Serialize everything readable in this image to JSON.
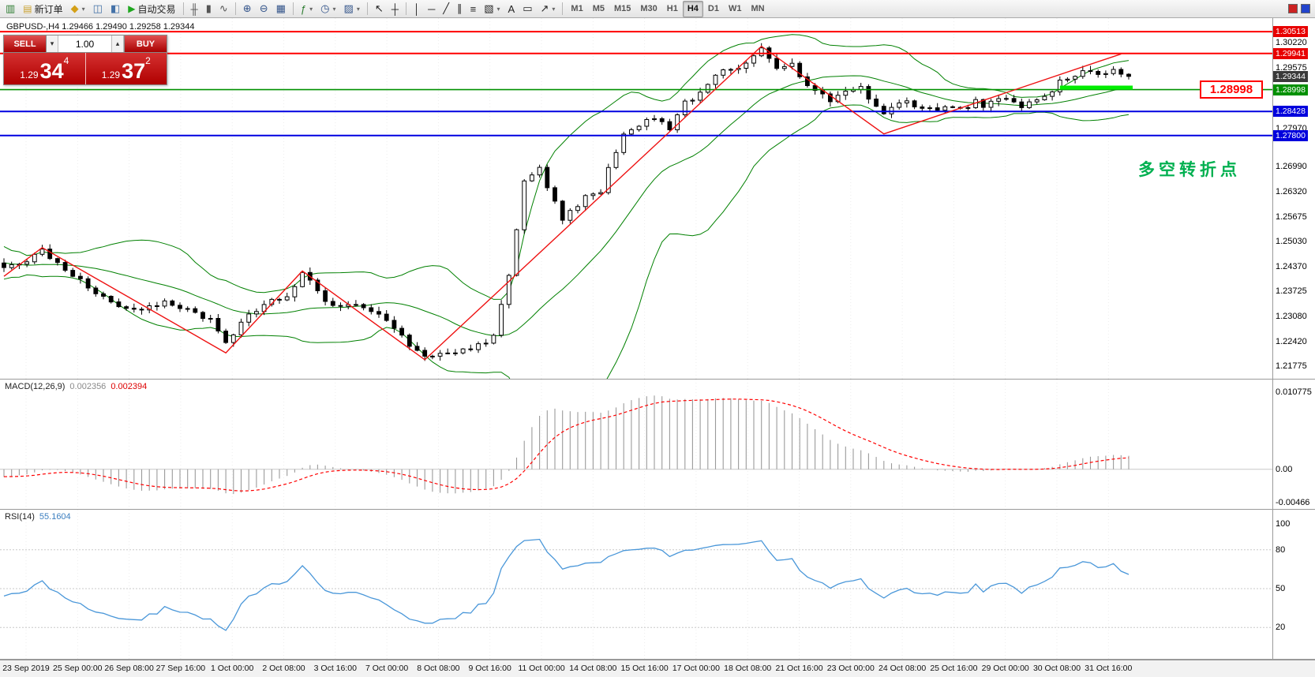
{
  "toolbar": {
    "active_timeframe": "H4",
    "items": [
      {
        "t": "icon",
        "name": "program-icon",
        "g": "▥",
        "c": "#2e7d32"
      },
      {
        "t": "labeled",
        "name": "new-order-button",
        "icon_name": "new-order-icon",
        "g": "▤",
        "gc": "#caa12d",
        "label": "新订单"
      },
      {
        "t": "icon",
        "name": "charts-profile-icon",
        "g": "◆",
        "c": "#d4a017",
        "caret": true
      },
      {
        "t": "icon",
        "name": "market-watch-icon",
        "g": "◫",
        "c": "#4472a8"
      },
      {
        "t": "icon",
        "name": "navigator-icon",
        "g": "◧",
        "c": "#4472a8"
      },
      {
        "t": "labeled",
        "name": "autotrading-button",
        "icon_name": "autotrading-play-icon",
        "g": "▶",
        "gc": "#1fa71f",
        "label": "自动交易"
      },
      {
        "t": "sep"
      },
      {
        "t": "icon",
        "name": "bar-chart-icon",
        "g": "╫",
        "c": "#555"
      },
      {
        "t": "icon",
        "name": "candlestick-icon",
        "g": "▮",
        "c": "#555"
      },
      {
        "t": "icon",
        "name": "line-chart-icon",
        "g": "∿",
        "c": "#555"
      },
      {
        "t": "sep"
      },
      {
        "t": "icon",
        "name": "zoom-in-icon",
        "g": "⊕",
        "c": "#33548a"
      },
      {
        "t": "icon",
        "name": "zoom-out-icon",
        "g": "⊖",
        "c": "#33548a"
      },
      {
        "t": "icon",
        "name": "tile-windows-icon",
        "g": "▦",
        "c": "#33548a"
      },
      {
        "t": "sep"
      },
      {
        "t": "icon",
        "name": "indicators-icon",
        "g": "ƒ",
        "c": "#2e7d32",
        "caret": true
      },
      {
        "t": "icon",
        "name": "periods-icon",
        "g": "◷",
        "c": "#33548a",
        "caret": true
      },
      {
        "t": "icon",
        "name": "templates-icon",
        "g": "▨",
        "c": "#33548a",
        "caret": true
      },
      {
        "t": "sep"
      },
      {
        "t": "icon",
        "name": "cursor-icon",
        "g": "↖",
        "c": "#222"
      },
      {
        "t": "icon",
        "name": "crosshair-icon",
        "g": "┼",
        "c": "#222"
      },
      {
        "t": "sep"
      },
      {
        "t": "icon",
        "name": "vertical-line-icon",
        "g": "│",
        "c": "#222"
      },
      {
        "t": "icon",
        "name": "horizontal-line-icon",
        "g": "─",
        "c": "#222"
      },
      {
        "t": "icon",
        "name": "trendline-icon",
        "g": "╱",
        "c": "#222"
      },
      {
        "t": "icon",
        "name": "equidistant-channel-icon",
        "g": "∥",
        "c": "#222"
      },
      {
        "t": "icon",
        "name": "fibonacci-icon",
        "g": "≡",
        "c": "#222"
      },
      {
        "t": "icon",
        "name": "shapes-icon",
        "g": "▧",
        "c": "#222",
        "caret": true
      },
      {
        "t": "icon",
        "name": "text-icon",
        "g": "A",
        "c": "#222"
      },
      {
        "t": "icon",
        "name": "text-label-icon",
        "g": "▭",
        "c": "#222"
      },
      {
        "t": "icon",
        "name": "arrows-icon",
        "g": "↗",
        "c": "#222",
        "caret": true
      },
      {
        "t": "sep"
      },
      {
        "t": "tf",
        "name": "timeframe-m1",
        "label": "M1"
      },
      {
        "t": "tf",
        "name": "timeframe-m5",
        "label": "M5"
      },
      {
        "t": "tf",
        "name": "timeframe-m15",
        "label": "M15"
      },
      {
        "t": "tf",
        "name": "timeframe-m30",
        "label": "M30"
      },
      {
        "t": "tf",
        "name": "timeframe-h1",
        "label": "H1"
      },
      {
        "t": "tf",
        "name": "timeframe-h4",
        "label": "H4"
      },
      {
        "t": "tf",
        "name": "timeframe-d1",
        "label": "D1"
      },
      {
        "t": "tf",
        "name": "timeframe-w1",
        "label": "W1"
      },
      {
        "t": "tf",
        "name": "timeframe-mn",
        "label": "MN"
      }
    ],
    "right_items": [
      {
        "name": "alerts-icon",
        "c": "#cc2222"
      },
      {
        "name": "mailbox-icon",
        "c": "#2244cc"
      }
    ]
  },
  "chart": {
    "symbol_line": "GBPUSD-,H4  1.29466 1.29490 1.29258 1.29344"
  },
  "trade_panel": {
    "sell_label": "SELL",
    "buy_label": "BUY",
    "volume": "1.00",
    "spin_down": "▾",
    "spin_up": "▴",
    "sell": {
      "small": "1.29",
      "big": "34",
      "sup": "4"
    },
    "buy": {
      "small": "1.29",
      "big": "37",
      "sup": "2"
    }
  },
  "annotation": {
    "text": "多空转折点",
    "color": "#00b050"
  },
  "price_callout": {
    "text": "1.28998",
    "color": "#ff0000"
  },
  "chart_data": [
    {
      "type": "candlestick",
      "title": "GBPUSD-,H4",
      "ohlc": {
        "open": "1.29466",
        "high": "1.29490",
        "low": "1.29258",
        "close": "1.29344"
      },
      "num_candles": 148,
      "price_waypoints": [
        [
          0,
          1.243
        ],
        [
          3,
          1.2455
        ],
        [
          5,
          1.248
        ],
        [
          8,
          1.2432
        ],
        [
          11,
          1.2382
        ],
        [
          14,
          1.2345
        ],
        [
          18,
          1.232
        ],
        [
          21,
          1.2345
        ],
        [
          23,
          1.2332
        ],
        [
          27,
          1.23
        ],
        [
          29,
          1.2238
        ],
        [
          32,
          1.231
        ],
        [
          34,
          1.2338
        ],
        [
          37,
          1.236
        ],
        [
          39,
          1.2418
        ],
        [
          42,
          1.2352
        ],
        [
          44,
          1.233
        ],
        [
          47,
          1.2336
        ],
        [
          49,
          1.2312
        ],
        [
          51,
          1.2282
        ],
        [
          53,
          1.2232
        ],
        [
          55,
          1.2207
        ],
        [
          58,
          1.2216
        ],
        [
          61,
          1.2222
        ],
        [
          63,
          1.2236
        ],
        [
          64,
          1.2262
        ],
        [
          66,
          1.2408
        ],
        [
          68,
          1.2655
        ],
        [
          70,
          1.2698
        ],
        [
          72,
          1.2602
        ],
        [
          73,
          1.2562
        ],
        [
          76,
          1.2618
        ],
        [
          78,
          1.2632
        ],
        [
          79,
          1.2698
        ],
        [
          81,
          1.2778
        ],
        [
          83,
          1.2808
        ],
        [
          85,
          1.2828
        ],
        [
          87,
          1.2792
        ],
        [
          89,
          1.2868
        ],
        [
          91,
          1.2888
        ],
        [
          93,
          1.2938
        ],
        [
          96,
          1.2958
        ],
        [
          98,
          1.2984
        ],
        [
          99,
          1.3004
        ],
        [
          101,
          1.2962
        ],
        [
          103,
          1.2968
        ],
        [
          104,
          1.2938
        ],
        [
          106,
          1.2892
        ],
        [
          108,
          1.2872
        ],
        [
          110,
          1.2898
        ],
        [
          112,
          1.2912
        ],
        [
          113,
          1.2882
        ],
        [
          115,
          1.2842
        ],
        [
          117,
          1.2858
        ],
        [
          118,
          1.2868
        ],
        [
          120,
          1.2855
        ],
        [
          122,
          1.2842
        ],
        [
          123,
          1.2858
        ],
        [
          125,
          1.2846
        ],
        [
          127,
          1.2868
        ],
        [
          128,
          1.286
        ],
        [
          130,
          1.2878
        ],
        [
          132,
          1.2864
        ],
        [
          133,
          1.2858
        ],
        [
          135,
          1.2878
        ],
        [
          137,
          1.2898
        ],
        [
          138,
          1.2918
        ],
        [
          140,
          1.2938
        ],
        [
          142,
          1.2948
        ],
        [
          143,
          1.2944
        ],
        [
          145,
          1.2952
        ],
        [
          146,
          1.2942
        ],
        [
          147,
          1.29344
        ]
      ],
      "pre_history": [
        1.248,
        1.25,
        1.247,
        1.249,
        1.246,
        1.245,
        1.247,
        1.244,
        1.246,
        1.243,
        1.245,
        1.244,
        1.2425,
        1.2445,
        1.243,
        1.244,
        1.242,
        1.2435,
        1.2425,
        1.243
      ],
      "zigzag": [
        [
          0,
          1.2412
        ],
        [
          5,
          1.2487
        ],
        [
          29,
          1.2212
        ],
        [
          39,
          1.2426
        ],
        [
          55,
          1.2194
        ],
        [
          99,
          1.3013
        ],
        [
          115,
          1.2784
        ],
        [
          146,
          1.2993
        ]
      ],
      "hlines": [
        {
          "price": 1.30513,
          "color": "#ff0000",
          "width": 2,
          "label": "1.30513",
          "bg": "#e80000"
        },
        {
          "price": 1.29941,
          "color": "#ff0000",
          "width": 2,
          "label": "1.29941",
          "bg": "#e80000"
        },
        {
          "price": 1.28998,
          "color": "#009000",
          "width": 1.6,
          "label": "1.28998",
          "bg": "#009000"
        },
        {
          "price": 1.28428,
          "color": "#0000e0",
          "width": 2,
          "label": "1.28428",
          "bg": "#0000dd"
        },
        {
          "price": 1.278,
          "color": "#0000e0",
          "width": 2,
          "label": "1.27800",
          "bg": "#0000dd"
        }
      ],
      "current_price": {
        "price": 1.29344,
        "label": "1.29344",
        "bg": "#3a3a3a"
      },
      "highlight_segment": {
        "price": 1.2905,
        "from_index": 138,
        "to_index": 147,
        "color": "#00ee00",
        "width": 5
      },
      "y_axis": {
        "min": 1.2165,
        "max": 1.307,
        "plain_labels": [
          "1.30220",
          "1.29575",
          "1.27970",
          "1.26990",
          "1.26320",
          "1.25675",
          "1.25030",
          "1.24370",
          "1.23725",
          "1.23080",
          "1.22420",
          "1.21775"
        ]
      },
      "x_labels": [
        "23 Sep 2019",
        "25 Sep 00:00",
        "26 Sep 08:00",
        "27 Sep 16:00",
        "1 Oct 00:00",
        "2 Oct 08:00",
        "3 Oct 16:00",
        "7 Oct 00:00",
        "8 Oct 08:00",
        "9 Oct 16:00",
        "11 Oct 00:00",
        "14 Oct 08:00",
        "15 Oct 16:00",
        "17 Oct 00:00",
        "18 Oct 08:00",
        "21 Oct 16:00",
        "23 Oct 00:00",
        "24 Oct 08:00",
        "25 Oct 16:00",
        "29 Oct 00:00",
        "30 Oct 08:00",
        "31 Oct 16:00"
      ],
      "colors": {
        "up": "#ffffff",
        "down": "#000000",
        "outline": "#000000",
        "bollinger": "#008000",
        "zigzag": "#ee1111",
        "grid": "#ededed"
      }
    },
    {
      "type": "macd_histogram",
      "label": "MACD(12,26,9)",
      "value_main": "0.002356",
      "value_signal": "0.002394",
      "params": [
        12,
        26,
        9
      ],
      "y_axis": {
        "max": 0.010775,
        "min": -0.00466,
        "labels": [
          "0.010775",
          "0.00",
          "-0.00466"
        ]
      },
      "colors": {
        "histogram": "#9a9a9a",
        "signal": "#ff0000",
        "zero": "#c8c8c8"
      }
    },
    {
      "type": "rsi_line",
      "label": "RSI(14)",
      "value": "55.1604",
      "period": 14,
      "levels": [
        80,
        50,
        20
      ],
      "y_axis": {
        "max": 100,
        "min": 0,
        "labels": [
          {
            "v": 100,
            "t": "100"
          },
          {
            "v": 80,
            "t": "80"
          },
          {
            "v": 50,
            "t": "50"
          },
          {
            "v": 20,
            "t": "20"
          }
        ]
      },
      "colors": {
        "line": "#4a97d9",
        "levels": "#c8c8c8"
      }
    }
  ]
}
